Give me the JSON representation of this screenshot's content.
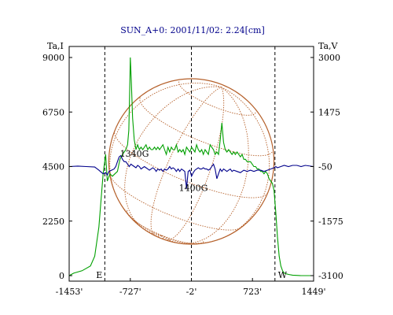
{
  "chart_data": {
    "type": "line",
    "title": "SUN_A+0: 2001/11/02: 2.24[cm]",
    "left_axis_label": "Ta,I",
    "right_axis_label": "Ta,V",
    "left_ticks": [
      "9000",
      "6750",
      "4500",
      "2250",
      "0"
    ],
    "left_tick_values": [
      9000,
      6750,
      4500,
      2250,
      0
    ],
    "right_ticks": [
      "3000",
      "1475",
      "-50",
      "-1575",
      "-3100"
    ],
    "x_ticks": [
      "-1453'",
      "-727'",
      "-2'",
      "723'",
      "1449'"
    ],
    "x_tick_values": [
      -1453,
      -727,
      -2,
      723,
      1449
    ],
    "xlim": [
      -1453,
      1449
    ],
    "ylim_left": [
      0,
      9000
    ],
    "ylim_right": [
      -3100,
      3000
    ],
    "vertical_markers": [
      -1030,
      -2,
      990
    ],
    "limb_labels": {
      "east": "E",
      "west": "W"
    },
    "annotations": [
      {
        "text": "1340G",
        "x": -850,
        "y": 4900
      },
      {
        "text": "1400G",
        "x": -150,
        "y": 3500
      }
    ],
    "solar_disk": {
      "center_x": -2,
      "radius_arcmin": 980,
      "color": "#b5602a"
    },
    "series": [
      {
        "axis": "left",
        "color": "#00a000",
        "x": [
          -1453,
          -1400,
          -1300,
          -1200,
          -1150,
          -1100,
          -1050,
          -1020,
          -1000,
          -970,
          -940,
          -910,
          -880,
          -850,
          -820,
          -800,
          -780,
          -760,
          -745,
          -735,
          -727,
          -715,
          -700,
          -680,
          -660,
          -640,
          -620,
          -600,
          -580,
          -560,
          -540,
          -520,
          -500,
          -480,
          -460,
          -440,
          -420,
          -400,
          -380,
          -360,
          -340,
          -320,
          -300,
          -280,
          -260,
          -240,
          -220,
          -200,
          -180,
          -160,
          -140,
          -120,
          -100,
          -80,
          -60,
          -40,
          -20,
          0,
          20,
          40,
          60,
          80,
          100,
          120,
          140,
          160,
          180,
          200,
          220,
          240,
          260,
          280,
          300,
          320,
          340,
          360,
          380,
          400,
          420,
          440,
          460,
          480,
          500,
          520,
          540,
          560,
          580,
          600,
          620,
          640,
          660,
          680,
          700,
          720,
          740,
          760,
          780,
          800,
          820,
          840,
          860,
          880,
          900,
          920,
          940,
          960,
          980,
          1000,
          1020,
          1040,
          1060,
          1080,
          1100,
          1150,
          1200,
          1300,
          1449
        ],
        "y": [
          0,
          100,
          200,
          400,
          800,
          2000,
          4200,
          5000,
          3900,
          4200,
          4100,
          4200,
          4300,
          4800,
          5000,
          5100,
          5200,
          5400,
          6000,
          7500,
          9000,
          8000,
          6500,
          5600,
          5200,
          5400,
          5200,
          5300,
          5200,
          5300,
          5400,
          5200,
          5300,
          5200,
          5200,
          5300,
          5200,
          5300,
          5200,
          5300,
          5400,
          5200,
          5000,
          5300,
          5100,
          5300,
          5200,
          5200,
          5400,
          5100,
          5200,
          5100,
          5200,
          5000,
          5300,
          5200,
          5100,
          5300,
          5200,
          5100,
          5400,
          5200,
          5100,
          5200,
          5000,
          5200,
          5100,
          5000,
          5400,
          5300,
          5200,
          5000,
          5100,
          5000,
          5600,
          6300,
          5500,
          5200,
          5100,
          5200,
          5100,
          5000,
          5100,
          5000,
          5100,
          5000,
          4900,
          5000,
          4800,
          4800,
          4700,
          4700,
          4700,
          4600,
          4500,
          4500,
          4400,
          4400,
          4300,
          4300,
          4200,
          4300,
          4200,
          4000,
          3900,
          3800,
          3500,
          2600,
          1600,
          800,
          400,
          200,
          100,
          50,
          20,
          0,
          0
        ]
      },
      {
        "axis": "left",
        "color": "#00008b",
        "x": [
          -1453,
          -1350,
          -1250,
          -1150,
          -1100,
          -1050,
          -1020,
          -1000,
          -980,
          -950,
          -920,
          -900,
          -880,
          -860,
          -840,
          -820,
          -800,
          -780,
          -760,
          -740,
          -720,
          -700,
          -680,
          -660,
          -640,
          -620,
          -600,
          -580,
          -560,
          -540,
          -520,
          -500,
          -480,
          -460,
          -440,
          -420,
          -400,
          -380,
          -360,
          -340,
          -320,
          -300,
          -280,
          -260,
          -240,
          -220,
          -200,
          -180,
          -160,
          -140,
          -120,
          -100,
          -80,
          -60,
          -40,
          -20,
          0,
          20,
          40,
          60,
          80,
          100,
          120,
          140,
          160,
          180,
          200,
          220,
          240,
          260,
          280,
          300,
          320,
          340,
          360,
          380,
          400,
          420,
          440,
          460,
          480,
          500,
          540,
          580,
          620,
          660,
          700,
          740,
          780,
          820,
          860,
          900,
          940,
          980,
          1000,
          1020,
          1060,
          1100,
          1150,
          1200,
          1250,
          1300,
          1350,
          1449
        ],
        "y": [
          4500,
          4520,
          4500,
          4480,
          4350,
          4200,
          4250,
          4150,
          4300,
          4350,
          4400,
          4500,
          4700,
          4900,
          4950,
          4800,
          4700,
          4700,
          4600,
          4500,
          4600,
          4550,
          4500,
          4450,
          4550,
          4500,
          4400,
          4450,
          4500,
          4450,
          4400,
          4350,
          4400,
          4450,
          4400,
          4300,
          4400,
          4350,
          4400,
          4300,
          4400,
          4350,
          4400,
          4500,
          4400,
          4450,
          4400,
          4300,
          4400,
          4300,
          4400,
          4350,
          4300,
          3600,
          4300,
          4350,
          4100,
          4250,
          4350,
          4400,
          4450,
          4400,
          4400,
          4450,
          4400,
          4400,
          4350,
          4400,
          4500,
          4600,
          4400,
          4000,
          4200,
          4400,
          4300,
          4400,
          4350,
          4300,
          4350,
          4400,
          4300,
          4350,
          4300,
          4250,
          4350,
          4300,
          4350,
          4300,
          4350,
          4350,
          4300,
          4350,
          4400,
          4450,
          4500,
          4450,
          4500,
          4550,
          4500,
          4550,
          4550,
          4500,
          4550,
          4500
        ]
      }
    ]
  }
}
